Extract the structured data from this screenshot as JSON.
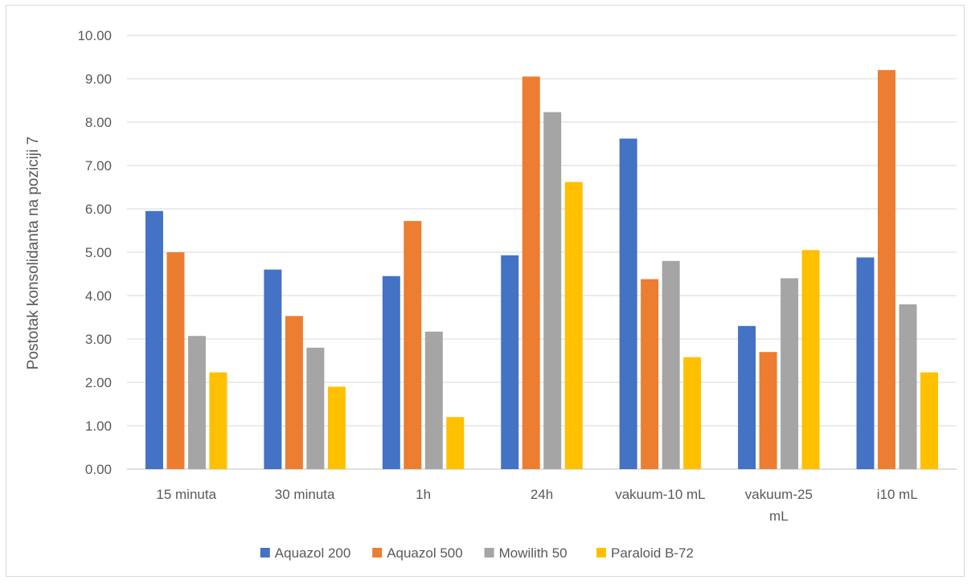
{
  "chart_data": {
    "type": "bar",
    "title": "",
    "xlabel": "",
    "ylabel": "Postotak konsolidanta na poziciji 7",
    "ylim": [
      0,
      10
    ],
    "yticks": [
      "0.00",
      "1.00",
      "2.00",
      "3.00",
      "4.00",
      "5.00",
      "6.00",
      "7.00",
      "8.00",
      "9.00",
      "10.00"
    ],
    "categories": [
      [
        "15 minuta"
      ],
      [
        "30 minuta"
      ],
      [
        "1h"
      ],
      [
        "24h"
      ],
      [
        "vakuum-10 mL"
      ],
      [
        "vakuum-25",
        "mL"
      ],
      [
        "i10 mL"
      ]
    ],
    "series": [
      {
        "name": "Aquazol 200",
        "color": "#4472C4",
        "values": [
          5.95,
          4.6,
          4.45,
          4.93,
          7.62,
          3.3,
          4.88
        ]
      },
      {
        "name": "Aquazol 500",
        "color": "#ED7D31",
        "values": [
          5.0,
          3.53,
          5.72,
          9.05,
          4.38,
          2.7,
          9.2
        ]
      },
      {
        "name": "Mowilith 50",
        "color": "#A5A5A5",
        "values": [
          3.07,
          2.8,
          3.17,
          8.23,
          4.8,
          4.4,
          3.8
        ]
      },
      {
        "name": "Paraloid B-72",
        "color": "#FFC000",
        "values": [
          2.23,
          1.9,
          1.2,
          6.62,
          2.58,
          5.05,
          2.23
        ]
      }
    ],
    "grid": true,
    "legend_position": "bottom"
  }
}
